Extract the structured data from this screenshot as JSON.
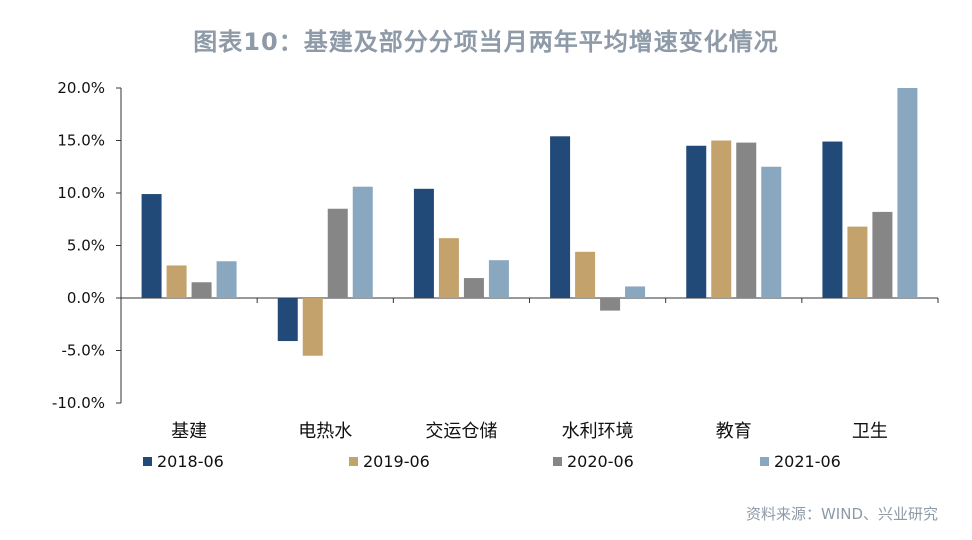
{
  "chart_data": {
    "type": "bar",
    "title": "图表10：基建及部分分项当月两年平均增速变化情况",
    "categories": [
      "基建",
      "电热水",
      "交运仓储",
      "水利环境",
      "教育",
      "卫生"
    ],
    "series": [
      {
        "name": "2018-06",
        "color": "#224a78",
        "values": [
          9.9,
          -4.1,
          10.4,
          15.4,
          14.5,
          14.9
        ]
      },
      {
        "name": "2019-06",
        "color": "#c4a26c",
        "values": [
          3.1,
          -5.5,
          5.7,
          4.4,
          15.0,
          6.8
        ]
      },
      {
        "name": "2020-06",
        "color": "#868686",
        "values": [
          1.5,
          8.5,
          1.9,
          -1.2,
          14.8,
          8.2
        ]
      },
      {
        "name": "2021-06",
        "color": "#89a7be",
        "values": [
          3.5,
          10.6,
          3.6,
          1.1,
          12.5,
          20.0
        ]
      }
    ],
    "ylim": [
      -10,
      20
    ],
    "yticks": [
      "20.0%",
      "15.0%",
      "10.0%",
      "5.0%",
      "0.0%",
      "-5.0%",
      "-10.0%"
    ],
    "ytick_values": [
      20,
      15,
      10,
      5,
      0,
      -5,
      -10
    ],
    "legend_position": "bottom",
    "grid": false
  },
  "source": "资料来源：WIND、兴业研究"
}
